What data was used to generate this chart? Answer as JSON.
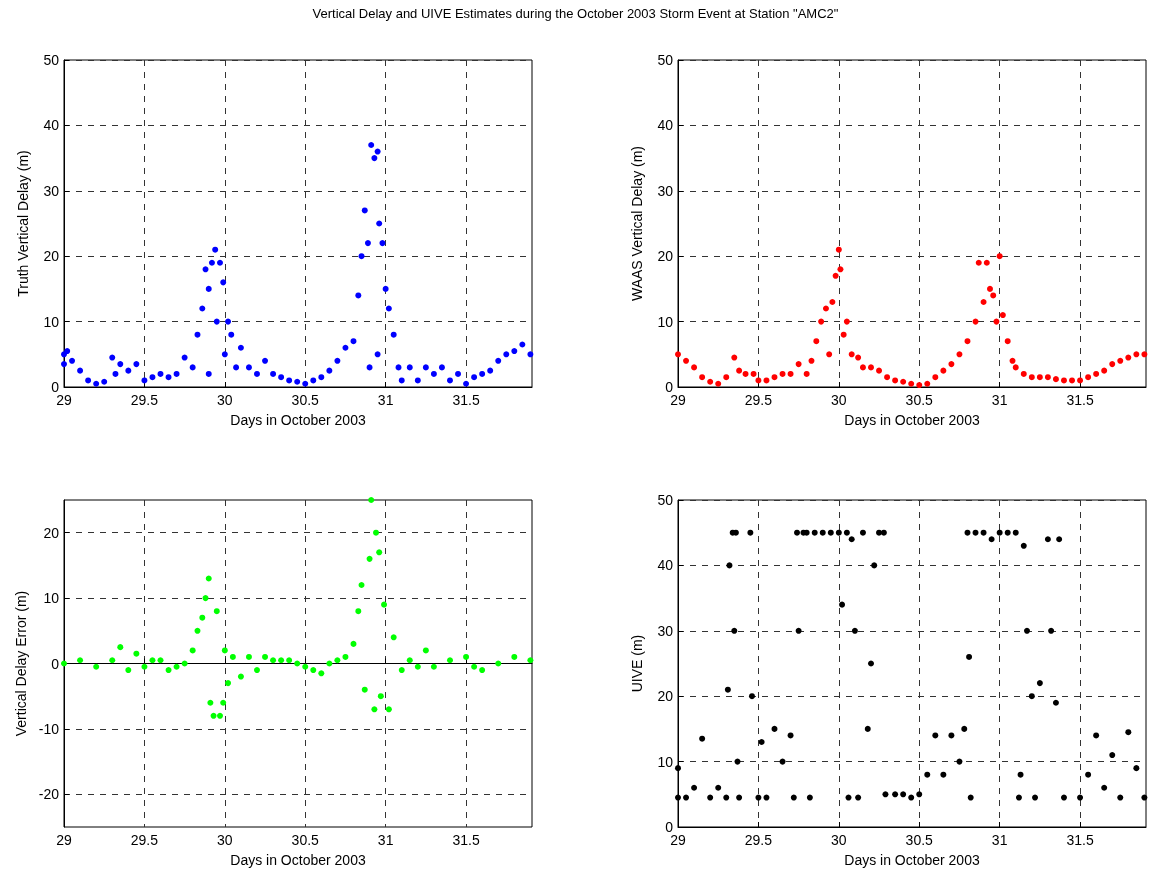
{
  "chart_data": [
    {
      "type": "scatter",
      "title": "Vertical Delay and UIVE Estimates during the October 2003 Storm Event at Station \"AMC2\"",
      "xlabel": "Days in October 2003",
      "ylabel": "Truth Vertical Delay (m)",
      "xlim": [
        29,
        31.91
      ],
      "xticks": [
        29,
        29.5,
        30,
        30.5,
        31,
        31.5
      ],
      "ylim": [
        0,
        50
      ],
      "yticks": [
        0,
        10,
        20,
        30,
        40,
        50
      ],
      "grid": true,
      "marker": "circle",
      "series": [
        {
          "color": "#0000ff",
          "x": [
            29.0,
            29.0,
            29.02,
            29.05,
            29.1,
            29.15,
            29.2,
            29.25,
            29.3,
            29.32,
            29.35,
            29.4,
            29.45,
            29.5,
            29.55,
            29.6,
            29.65,
            29.7,
            29.75,
            29.8,
            29.83,
            29.86,
            29.88,
            29.9,
            29.9,
            29.92,
            29.94,
            29.95,
            29.97,
            29.99,
            30.0,
            30.02,
            30.04,
            30.07,
            30.1,
            30.15,
            30.2,
            30.25,
            30.3,
            30.35,
            30.4,
            30.45,
            30.5,
            30.55,
            30.6,
            30.65,
            30.7,
            30.75,
            30.8,
            30.83,
            30.85,
            30.87,
            30.89,
            30.9,
            30.91,
            30.93,
            30.95,
            30.95,
            30.96,
            30.98,
            31.0,
            31.02,
            31.05,
            31.08,
            31.1,
            31.15,
            31.2,
            31.25,
            31.3,
            31.35,
            31.4,
            31.45,
            31.5,
            31.55,
            31.6,
            31.65,
            31.7,
            31.75,
            31.8,
            31.85,
            31.9
          ],
          "values": [
            5,
            3.5,
            5.5,
            4,
            2.5,
            1,
            0.5,
            0.8,
            4.5,
            2,
            3.5,
            2.5,
            3.5,
            1,
            1.5,
            2,
            1.5,
            2,
            4.5,
            3,
            8,
            12,
            18,
            2,
            15,
            19,
            21,
            10,
            19,
            16,
            5,
            10,
            8,
            3,
            6,
            3,
            2,
            4,
            2,
            1.5,
            1,
            0.8,
            0.5,
            1,
            1.5,
            2.5,
            4,
            6,
            7,
            14,
            20,
            27,
            22,
            3,
            37,
            35,
            36,
            5,
            25,
            22,
            15,
            12,
            8,
            3,
            1,
            3,
            1,
            3,
            2,
            3,
            1,
            2,
            0.5,
            1.5,
            2,
            2.5,
            4,
            5,
            5.5,
            6.5,
            5
          ]
        }
      ]
    },
    {
      "type": "scatter",
      "xlabel": "Days in October 2003",
      "ylabel": "WAAS Vertical Delay (m)",
      "xlim": [
        29,
        31.91
      ],
      "xticks": [
        29,
        29.5,
        30,
        30.5,
        31,
        31.5
      ],
      "ylim": [
        0,
        50
      ],
      "yticks": [
        0,
        10,
        20,
        30,
        40,
        50
      ],
      "grid": true,
      "marker": "circle",
      "series": [
        {
          "color": "#ff0000",
          "x": [
            29.0,
            29.05,
            29.1,
            29.15,
            29.2,
            29.25,
            29.3,
            29.35,
            29.38,
            29.42,
            29.47,
            29.5,
            29.55,
            29.6,
            29.65,
            29.7,
            29.75,
            29.8,
            29.83,
            29.86,
            29.89,
            29.92,
            29.94,
            29.96,
            29.98,
            30.0,
            30.01,
            30.03,
            30.05,
            30.08,
            30.12,
            30.15,
            30.2,
            30.25,
            30.3,
            30.35,
            30.4,
            30.45,
            30.5,
            30.55,
            30.6,
            30.65,
            30.7,
            30.75,
            30.8,
            30.85,
            30.87,
            30.9,
            30.92,
            30.94,
            30.96,
            30.98,
            31.0,
            31.02,
            31.05,
            31.08,
            31.1,
            31.15,
            31.2,
            31.25,
            31.3,
            31.35,
            31.4,
            31.45,
            31.5,
            31.55,
            31.6,
            31.65,
            31.7,
            31.75,
            31.8,
            31.85,
            31.9
          ],
          "values": [
            5,
            4,
            3,
            1.5,
            0.8,
            0.5,
            1.5,
            4.5,
            2.5,
            2,
            2,
            1,
            1,
            1.5,
            2,
            2,
            3.5,
            2,
            4,
            7,
            10,
            12,
            5,
            13,
            17,
            21,
            18,
            8,
            10,
            5,
            4.5,
            3,
            3,
            2.5,
            1.5,
            1,
            0.8,
            0.5,
            0.3,
            0.5,
            1.5,
            2.5,
            3.5,
            5,
            7,
            10,
            19,
            13,
            19,
            15,
            14,
            10,
            20,
            11,
            7,
            4,
            3,
            2,
            1.5,
            1.5,
            1.5,
            1.2,
            1,
            1,
            1,
            1.5,
            2,
            2.5,
            3.5,
            4,
            4.5,
            5,
            5
          ]
        }
      ]
    },
    {
      "type": "scatter",
      "xlabel": "Days in October 2003",
      "ylabel": "Vertical Delay Error (m)",
      "xlim": [
        29,
        31.91
      ],
      "xticks": [
        29,
        29.5,
        30,
        30.5,
        31,
        31.5
      ],
      "ylim": [
        -25,
        25
      ],
      "yticks": [
        -20,
        -10,
        0,
        10,
        20
      ],
      "grid": true,
      "marker": "circle",
      "series": [
        {
          "color": "#00ff00",
          "x": [
            29.0,
            29.1,
            29.2,
            29.3,
            29.35,
            29.4,
            29.45,
            29.5,
            29.55,
            29.6,
            29.65,
            29.7,
            29.75,
            29.8,
            29.83,
            29.86,
            29.88,
            29.9,
            29.91,
            29.93,
            29.95,
            29.97,
            29.99,
            30.0,
            30.02,
            30.05,
            30.1,
            30.15,
            30.2,
            30.25,
            30.3,
            30.35,
            30.4,
            30.45,
            30.5,
            30.55,
            30.6,
            30.65,
            30.7,
            30.75,
            30.8,
            30.83,
            30.85,
            30.87,
            30.9,
            30.91,
            30.93,
            30.94,
            30.96,
            30.97,
            30.99,
            31.02,
            31.05,
            31.1,
            31.15,
            31.2,
            31.25,
            31.3,
            31.4,
            31.5,
            31.55,
            31.6,
            31.7,
            31.8,
            31.9
          ],
          "values": [
            0,
            0.5,
            -0.5,
            0.5,
            2.5,
            -1,
            1.5,
            -0.5,
            0.5,
            0.5,
            -1,
            -0.5,
            0,
            2,
            5,
            7,
            10,
            13,
            -6,
            -8,
            8,
            -8,
            -6,
            2,
            -3,
            1,
            -2,
            1,
            -1,
            1,
            0.5,
            0.5,
            0.5,
            0,
            -0.5,
            -1,
            -1.5,
            0,
            0.5,
            1,
            3,
            8,
            12,
            -4,
            16,
            25,
            -7,
            20,
            17,
            -5,
            9,
            -7,
            4,
            -1,
            0.5,
            -0.5,
            2,
            -0.5,
            0.5,
            1,
            -0.5,
            -1,
            0,
            1,
            0.5
          ]
        }
      ]
    },
    {
      "type": "scatter",
      "xlabel": "Days in October 2003",
      "ylabel": "UIVE (m)",
      "xlim": [
        29,
        31.91
      ],
      "xticks": [
        29,
        29.5,
        30,
        30.5,
        31,
        31.5
      ],
      "ylim": [
        0,
        50
      ],
      "yticks": [
        0,
        10,
        20,
        30,
        40,
        50
      ],
      "grid": true,
      "marker": "circle",
      "series": [
        {
          "color": "#000000",
          "x": [
            29.0,
            29.0,
            29.05,
            29.1,
            29.15,
            29.2,
            29.25,
            29.3,
            29.31,
            29.32,
            29.34,
            29.35,
            29.36,
            29.37,
            29.38,
            29.45,
            29.46,
            29.5,
            29.52,
            29.55,
            29.6,
            29.65,
            29.7,
            29.72,
            29.74,
            29.75,
            29.78,
            29.8,
            29.82,
            29.85,
            29.9,
            29.95,
            30.0,
            30.02,
            30.05,
            30.06,
            30.08,
            30.1,
            30.12,
            30.15,
            30.18,
            30.2,
            30.22,
            30.25,
            30.28,
            30.29,
            30.35,
            30.4,
            30.45,
            30.5,
            30.55,
            30.6,
            30.65,
            30.7,
            30.75,
            30.78,
            30.8,
            30.81,
            30.82,
            30.85,
            30.9,
            30.95,
            31.0,
            31.05,
            31.1,
            31.12,
            31.13,
            31.15,
            31.17,
            31.2,
            31.22,
            31.25,
            31.3,
            31.32,
            31.35,
            31.37,
            31.4,
            31.5,
            31.55,
            31.6,
            31.65,
            31.7,
            31.75,
            31.8,
            31.85,
            31.9
          ],
          "values": [
            4.5,
            9,
            4.5,
            6,
            13.5,
            4.5,
            6,
            4.5,
            21,
            40,
            45,
            30,
            45,
            10,
            4.5,
            45,
            20,
            4.5,
            13,
            4.5,
            15,
            10,
            14,
            4.5,
            45,
            30,
            45,
            45,
            4.5,
            45,
            45,
            45,
            45,
            34,
            45,
            4.5,
            44,
            30,
            4.5,
            45,
            15,
            25,
            40,
            45,
            45,
            5,
            5,
            5,
            4.5,
            5,
            8,
            14,
            8,
            14,
            10,
            15,
            45,
            26,
            4.5,
            45,
            45,
            44,
            45,
            45,
            45,
            4.5,
            8,
            43,
            30,
            20,
            4.5,
            22,
            44,
            30,
            19,
            44,
            4.5,
            4.5,
            8,
            14,
            6,
            11,
            4.5,
            14.5,
            9,
            4.5
          ]
        }
      ]
    }
  ]
}
